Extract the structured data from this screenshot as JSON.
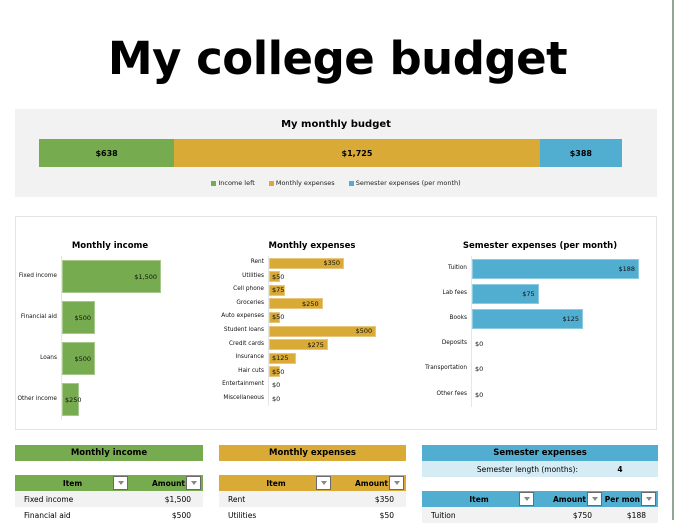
{
  "title": "My college budget",
  "colors": {
    "green": "#77ab4f",
    "yellow": "#d9aa36",
    "blue": "#52aed0",
    "light_blue": "#d5ecf5",
    "panel_gray": "#f2f2f2"
  },
  "summary": {
    "title": "My monthly budget",
    "segments": [
      {
        "name": "Income left",
        "label": "$638",
        "value": 638
      },
      {
        "name": "Monthly expenses",
        "label": "$1,725",
        "value": 1725
      },
      {
        "name": "Semester expenses (per month)",
        "label": "$388",
        "value": 388
      }
    ],
    "legend": [
      "Income left",
      "Monthly expenses",
      "Semester expenses (per month)"
    ]
  },
  "chart_data": [
    {
      "type": "bar",
      "title": "My monthly budget",
      "orientation": "horizontal-stacked",
      "series": [
        {
          "name": "Income left",
          "values": [
            638
          ]
        },
        {
          "name": "Monthly expenses",
          "values": [
            1725
          ]
        },
        {
          "name": "Semester expenses (per month)",
          "values": [
            388
          ]
        }
      ],
      "legend_position": "bottom"
    },
    {
      "type": "bar",
      "title": "Monthly income",
      "orientation": "horizontal",
      "categories": [
        "Fixed income",
        "Financial aid",
        "Loans",
        "Other income"
      ],
      "values": [
        1500,
        500,
        500,
        250
      ],
      "labels": [
        "$1,500",
        "$500",
        "$500",
        "$250"
      ]
    },
    {
      "type": "bar",
      "title": "Monthly expenses",
      "orientation": "horizontal",
      "categories": [
        "Rent",
        "Utilities",
        "Cell phone",
        "Groceries",
        "Auto expenses",
        "Student loans",
        "Credit cards",
        "Insurance",
        "Hair cuts",
        "Entertainment",
        "Miscellaneous"
      ],
      "values": [
        350,
        50,
        75,
        250,
        50,
        500,
        275,
        125,
        50,
        0,
        0
      ],
      "labels": [
        "$350",
        "$50",
        "$75",
        "$250",
        "$50",
        "$500",
        "$275",
        "$125",
        "$50",
        "$0",
        "$0"
      ]
    },
    {
      "type": "bar",
      "title": "Semester expenses (per month)",
      "orientation": "horizontal",
      "categories": [
        "Tuition",
        "Lab fees",
        "Books",
        "Deposits",
        "Transportation",
        "Other fees"
      ],
      "values": [
        188,
        75,
        125,
        0,
        0,
        0
      ],
      "labels": [
        "$188",
        "$75",
        "$125",
        "$0",
        "$0",
        "$0"
      ]
    }
  ],
  "tables": {
    "income": {
      "banner": "Monthly income",
      "headers": [
        "Item",
        "Amount"
      ],
      "rows": [
        [
          "Fixed income",
          "$1,500"
        ],
        [
          "Financial aid",
          "$500"
        ]
      ]
    },
    "expenses": {
      "banner": "Monthly expenses",
      "headers": [
        "Item",
        "Amount"
      ],
      "rows": [
        [
          "Rent",
          "$350"
        ],
        [
          "Utilities",
          "$50"
        ]
      ]
    },
    "semester": {
      "banner": "Semester expenses",
      "length_label": "Semester length (months):",
      "length_value": "4",
      "headers": [
        "Item",
        "Amount",
        "Per mon"
      ],
      "rows": [
        [
          "Tuition",
          "$750",
          "$188"
        ]
      ]
    }
  }
}
